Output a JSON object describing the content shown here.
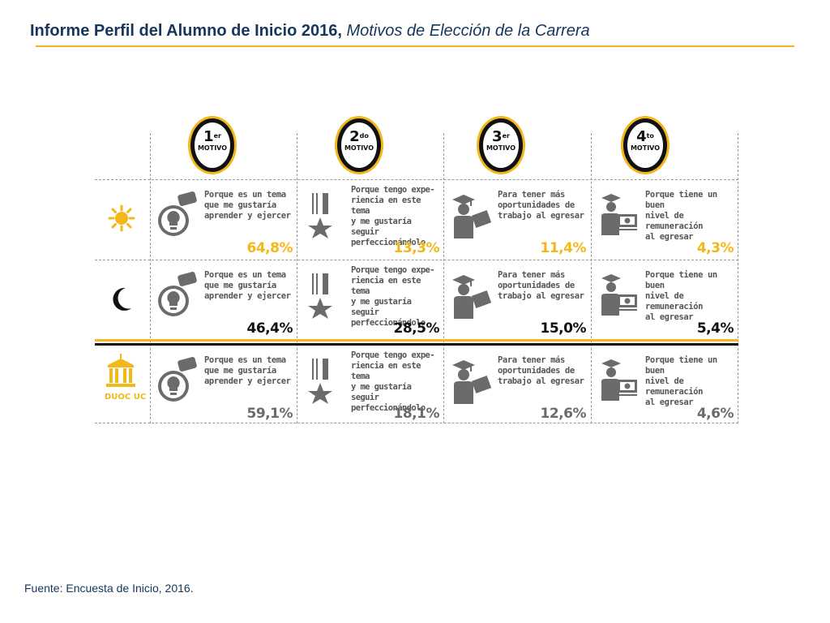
{
  "header": {
    "title_main": "Informe Perfil del Alumno de Inicio 2016,",
    "title_sub": "Motivos de Elección de la Carrera"
  },
  "columns": [
    {
      "num": "1",
      "sup": "er",
      "label": "MOTIVO",
      "icon": "lightbulb-icon",
      "desc": "Porque es un tema\nque me gustaría\naprender y ejercer"
    },
    {
      "num": "2",
      "sup": "do",
      "label": "MOTIVO",
      "icon": "medal-icon",
      "desc": "Porque tengo expe-\nriencia en este tema\ny me gustaría seguir\nperfeccionándolo"
    },
    {
      "num": "3",
      "sup": "er",
      "label": "MOTIVO",
      "icon": "graduate-icon",
      "desc": "Para tener más\noportunidades de\ntrabajo al egresar"
    },
    {
      "num": "4",
      "sup": "to",
      "label": "MOTIVO",
      "icon": "money-icon",
      "desc": "Porque tiene un buen\nnivel de remuneración\nal egresar"
    }
  ],
  "rows": [
    {
      "icon": "sun-icon",
      "values": [
        "64,8%",
        "13,3%",
        "11,4%",
        "4,3%"
      ],
      "color": "#f2b818"
    },
    {
      "icon": "moon-icon",
      "values": [
        "46,4%",
        "28,5%",
        "15,0%",
        "5,4%"
      ],
      "color": "#111111"
    },
    {
      "icon": "duoc-uc-logo",
      "logo_text": "DUOC UC",
      "values": [
        "59,1%",
        "18,1%",
        "12,6%",
        "4,6%"
      ],
      "color": "#6b6b6b"
    }
  ],
  "footer": {
    "source": "Fuente: Encuesta de Inicio, 2016."
  }
}
